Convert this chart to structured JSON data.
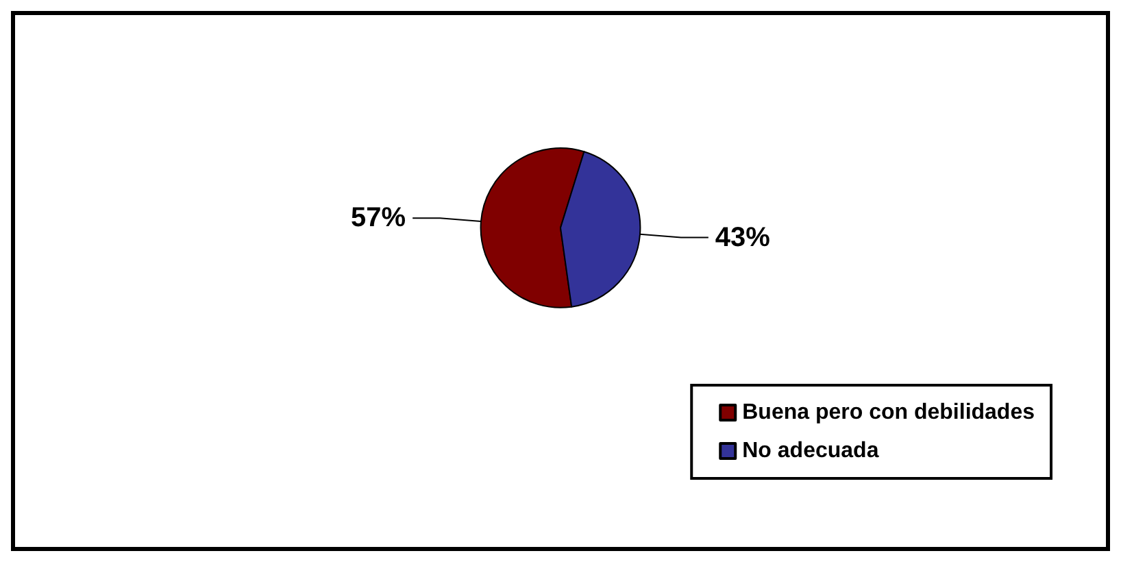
{
  "chart_data": {
    "type": "pie",
    "categories": [
      "Buena pero con debilidades",
      "No adecuada"
    ],
    "values": [
      57,
      43
    ],
    "colors": [
      "#800000",
      "#333399"
    ],
    "value_labels": [
      "57%",
      "43%"
    ],
    "legend": "bottom right"
  }
}
